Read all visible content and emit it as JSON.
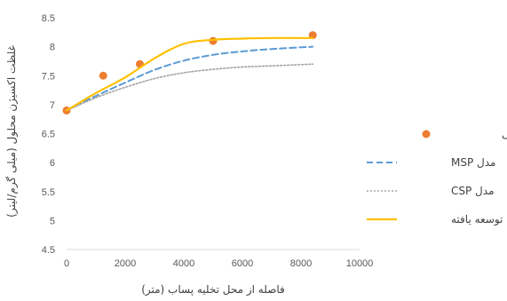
{
  "chart_data": {
    "type": "line",
    "xlabel": "فاصله از محل تخلیه پساب (متر)",
    "ylabel": "غلظت اکسیژن محلول (میلی گرم/لیتر)",
    "xlim": [
      0,
      10000
    ],
    "ylim": [
      4.5,
      8.5
    ],
    "x_ticks": [
      "0",
      "2000",
      "4000",
      "6000",
      "8000",
      "10000"
    ],
    "y_ticks": [
      "4.5",
      "5",
      "5.5",
      "6",
      "6.5",
      "7",
      "7.5",
      "8",
      "8.5"
    ],
    "grid": false,
    "legend_position": "right",
    "series": [
      {
        "name": "داده های مشاهداتی",
        "style": "markers",
        "color": "#ED7D31",
        "x": [
          0,
          1250,
          2500,
          5000,
          8400
        ],
        "y": [
          6.9,
          7.5,
          7.7,
          8.1,
          8.2
        ]
      },
      {
        "name": "مدل MSP",
        "style": "dashed",
        "color": "#5B9BD5",
        "x": [
          0,
          1000,
          2000,
          3000,
          4000,
          5000,
          6000,
          7000,
          8400
        ],
        "y": [
          6.9,
          7.15,
          7.38,
          7.6,
          7.76,
          7.86,
          7.92,
          7.96,
          8.0
        ]
      },
      {
        "name": "مدل CSP",
        "style": "dotted",
        "color": "#A5A5A5",
        "x": [
          0,
          1000,
          2000,
          3000,
          4000,
          5000,
          6000,
          7000,
          8400
        ],
        "y": [
          6.9,
          7.12,
          7.3,
          7.45,
          7.55,
          7.61,
          7.65,
          7.67,
          7.7
        ]
      },
      {
        "name": "مدل توسعه یافته",
        "style": "solid",
        "color": "#FFC000",
        "x": [
          0,
          1000,
          2000,
          3000,
          4000,
          5000,
          6000,
          7000,
          8400
        ],
        "y": [
          6.9,
          7.2,
          7.47,
          7.8,
          8.05,
          8.12,
          8.14,
          8.15,
          8.15
        ]
      }
    ]
  }
}
